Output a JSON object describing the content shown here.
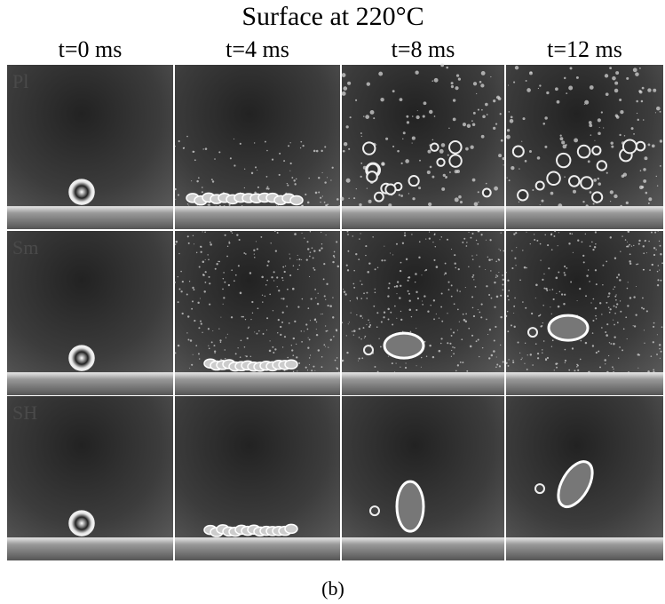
{
  "figure": {
    "title": "Surface at 220°C",
    "columns": [
      "t=0 ms",
      "t=4 ms",
      "t=8 ms",
      "t=12 ms"
    ],
    "rows": [
      "Pl",
      "Sm",
      "SH"
    ],
    "caption": "(b)"
  }
}
